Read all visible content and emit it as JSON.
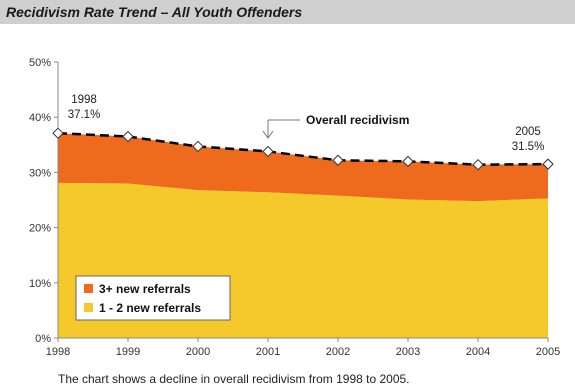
{
  "header": {
    "title": "Recidivism Rate Trend – All Youth Offenders"
  },
  "caption": "The chart shows a decline in overall recidivism from 1998 to 2005.",
  "chart_data": {
    "type": "area",
    "title": "Recidivism Rate Trend – All Youth Offenders",
    "xlabel": "",
    "ylabel": "",
    "x": [
      "1998",
      "1999",
      "2000",
      "2001",
      "2002",
      "2003",
      "2004",
      "2005"
    ],
    "ylim": [
      0,
      50
    ],
    "y_ticks": [
      "0%",
      "10%",
      "20%",
      "30%",
      "40%",
      "50%"
    ],
    "stacked": true,
    "grid": false,
    "series": [
      {
        "name": "1 - 2 new referrals",
        "color": "#f5c92b",
        "values": [
          28.1,
          28.0,
          26.8,
          26.4,
          25.8,
          25.1,
          24.8,
          25.3
        ]
      },
      {
        "name": "3+ new referrals",
        "color": "#ee6a1c",
        "values": [
          9.0,
          8.5,
          7.9,
          7.4,
          6.4,
          6.9,
          6.6,
          6.2
        ]
      }
    ],
    "overall": {
      "name": "Overall recidivism",
      "values": [
        37.1,
        36.5,
        34.7,
        33.8,
        32.2,
        32.0,
        31.4,
        31.5
      ],
      "color": "#000000"
    },
    "annotations": {
      "start_year": "1998",
      "start_value": "37.1%",
      "end_year": "2005",
      "end_value": "31.5%",
      "line_label": "Overall recidivism"
    },
    "legend_position": "bottom-left"
  }
}
